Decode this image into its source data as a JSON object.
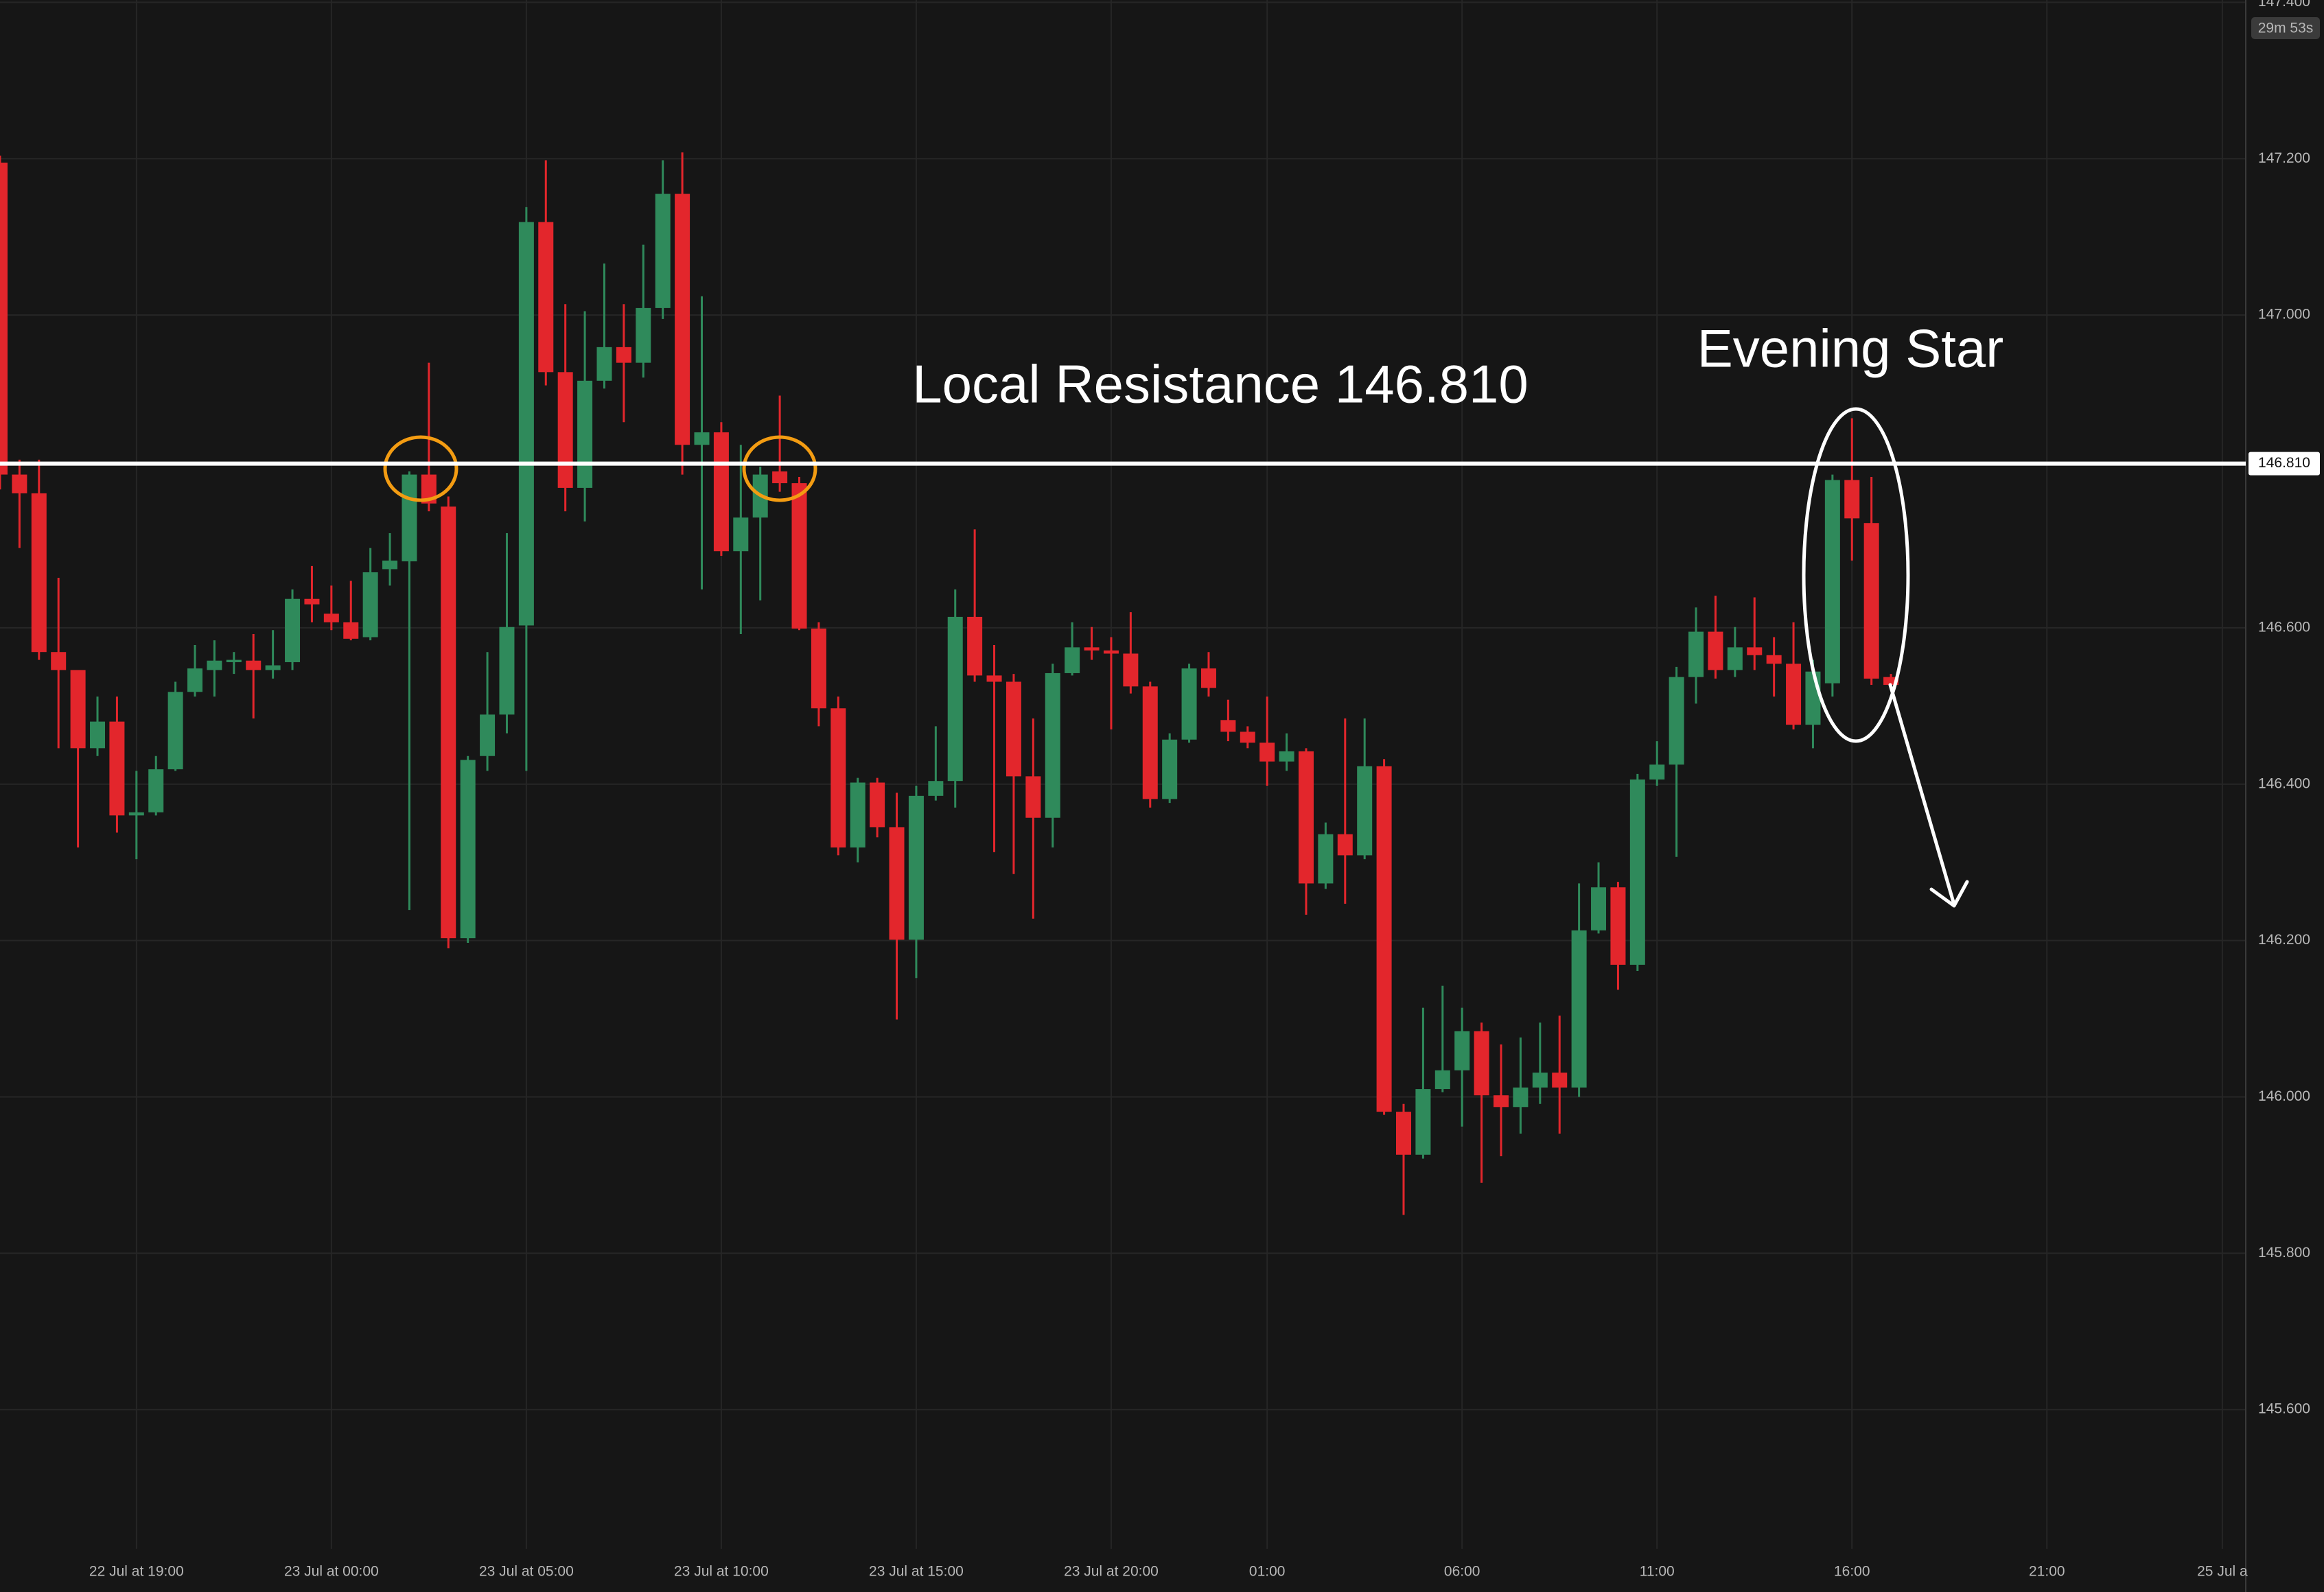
{
  "chart_data": {
    "type": "candlestick",
    "open": [
      147.195,
      146.796,
      146.772,
      146.569,
      146.546,
      146.446,
      146.48,
      146.36,
      146.364,
      146.419,
      146.518,
      146.546,
      146.556,
      146.558,
      146.546,
      146.556,
      146.637,
      146.618,
      146.607,
      146.588,
      146.675,
      146.685,
      146.796,
      146.755,
      146.203,
      146.436,
      146.489,
      146.603,
      147.119,
      146.927,
      146.779,
      146.916,
      146.959,
      146.939,
      147.009,
      147.155,
      146.834,
      146.85,
      146.698,
      146.741,
      146.8,
      146.785,
      146.599,
      146.497,
      146.319,
      146.402,
      146.345,
      146.201,
      146.385,
      146.404,
      146.614,
      146.539,
      146.531,
      146.41,
      146.357,
      146.542,
      146.575,
      146.571,
      146.567,
      146.525,
      146.381,
      146.457,
      146.548,
      146.482,
      146.467,
      146.453,
      146.429,
      146.442,
      146.273,
      146.336,
      146.309,
      146.423,
      145.981,
      145.926,
      146.01,
      146.034,
      146.084,
      146.002,
      145.987,
      146.012,
      146.031,
      146.012,
      146.213,
      146.268,
      146.169,
      146.406,
      146.425,
      146.537,
      146.595,
      146.546,
      146.575,
      146.565,
      146.554,
      146.476,
      146.529,
      146.789,
      146.734,
      146.537
    ],
    "high": [
      147.204,
      146.815,
      146.815,
      146.664,
      146.541,
      146.512,
      146.512,
      146.417,
      146.436,
      146.531,
      146.578,
      146.584,
      146.569,
      146.592,
      146.597,
      146.649,
      146.679,
      146.654,
      146.66,
      146.702,
      146.721,
      146.8,
      146.939,
      146.768,
      146.436,
      146.569,
      146.721,
      147.138,
      147.198,
      147.014,
      147.005,
      147.066,
      147.014,
      147.09,
      147.198,
      147.208,
      147.024,
      146.863,
      146.834,
      146.806,
      146.897,
      146.793,
      146.607,
      146.512,
      146.408,
      146.408,
      146.389,
      146.398,
      146.474,
      146.649,
      146.726,
      146.578,
      146.541,
      146.484,
      146.554,
      146.607,
      146.601,
      146.588,
      146.62,
      146.531,
      146.465,
      146.554,
      146.569,
      146.508,
      146.474,
      146.512,
      146.465,
      146.446,
      146.351,
      146.484,
      146.484,
      146.432,
      145.991,
      146.114,
      146.142,
      146.114,
      146.095,
      146.067,
      146.076,
      146.095,
      146.104,
      146.273,
      146.3,
      146.275,
      146.413,
      146.455,
      146.55,
      146.626,
      146.641,
      146.601,
      146.639,
      146.588,
      146.607,
      146.559,
      146.796,
      146.868,
      146.793,
      146.541
    ],
    "low": [
      146.777,
      146.702,
      146.559,
      146.446,
      146.319,
      146.436,
      146.338,
      146.304,
      146.36,
      146.417,
      146.512,
      146.512,
      146.541,
      146.484,
      146.535,
      146.546,
      146.607,
      146.597,
      146.584,
      146.584,
      146.654,
      146.239,
      146.749,
      146.19,
      146.197,
      146.417,
      146.465,
      146.417,
      146.91,
      146.749,
      146.736,
      146.906,
      146.863,
      146.92,
      146.995,
      146.796,
      146.649,
      146.692,
      146.592,
      146.635,
      146.774,
      146.597,
      146.474,
      146.309,
      146.3,
      146.332,
      146.099,
      146.152,
      146.379,
      146.37,
      146.531,
      146.313,
      146.285,
      146.228,
      146.319,
      146.539,
      146.559,
      146.47,
      146.516,
      146.37,
      146.376,
      146.453,
      146.512,
      146.455,
      146.446,
      146.398,
      146.417,
      146.233,
      146.266,
      146.247,
      146.304,
      145.977,
      145.849,
      145.921,
      146.006,
      145.962,
      145.89,
      145.924,
      145.953,
      145.991,
      145.953,
      146.0,
      146.209,
      146.137,
      146.161,
      146.398,
      146.307,
      146.503,
      146.535,
      146.537,
      146.546,
      146.512,
      146.47,
      146.446,
      146.512,
      146.686,
      146.527,
      146.522
    ],
    "close": [
      146.796,
      146.772,
      146.569,
      146.546,
      146.446,
      146.48,
      146.36,
      146.364,
      146.419,
      146.518,
      146.548,
      146.558,
      146.559,
      146.546,
      146.552,
      146.637,
      146.63,
      146.607,
      146.586,
      146.671,
      146.686,
      146.796,
      146.759,
      146.203,
      146.431,
      146.489,
      146.601,
      147.119,
      146.927,
      146.779,
      146.916,
      146.959,
      146.939,
      147.009,
      147.155,
      146.834,
      146.85,
      146.698,
      146.741,
      146.796,
      146.785,
      146.599,
      146.497,
      146.319,
      146.402,
      146.345,
      146.201,
      146.385,
      146.404,
      146.614,
      146.539,
      146.531,
      146.41,
      146.357,
      146.542,
      146.575,
      146.571,
      146.567,
      146.525,
      146.381,
      146.457,
      146.548,
      146.523,
      146.467,
      146.453,
      146.429,
      146.442,
      146.273,
      146.336,
      146.309,
      146.423,
      145.981,
      145.926,
      146.01,
      146.034,
      146.084,
      146.002,
      145.987,
      146.012,
      146.031,
      146.012,
      146.213,
      146.268,
      146.169,
      146.406,
      146.425,
      146.537,
      146.595,
      146.546,
      146.575,
      146.565,
      146.554,
      146.476,
      146.544,
      146.789,
      146.74,
      146.535,
      146.527
    ],
    "up_color": "#2f8a5b",
    "down_color": "#e3262c",
    "xlim": [
      0,
      115.2
    ],
    "xticks": [
      {
        "value": 7,
        "label": "22 Jul at 19:00"
      },
      {
        "value": 17,
        "label": "23 Jul at 00:00"
      },
      {
        "value": 27,
        "label": "23 Jul at 05:00"
      },
      {
        "value": 37,
        "label": "23 Jul at 10:00"
      },
      {
        "value": 47,
        "label": "23 Jul at 15:00"
      },
      {
        "value": 57,
        "label": "23 Jul at 20:00"
      },
      {
        "value": 65,
        "label": "01:00"
      },
      {
        "value": 75,
        "label": "06:00"
      },
      {
        "value": 85,
        "label": "11:00"
      },
      {
        "value": 95,
        "label": "16:00"
      },
      {
        "value": 105,
        "label": "21:00"
      },
      {
        "value": 114,
        "label": "25 Jul a"
      }
    ],
    "ylim": [
      145.422,
      147.403
    ],
    "yticks": [
      {
        "value": 147.4,
        "label": "147.400"
      },
      {
        "value": 147.2,
        "label": "147.200"
      },
      {
        "value": 147.0,
        "label": "147.000"
      },
      {
        "value": 146.6,
        "label": "146.600"
      },
      {
        "value": 146.4,
        "label": "146.400"
      },
      {
        "value": 146.2,
        "label": "146.200"
      },
      {
        "value": 146.0,
        "label": "146.000"
      },
      {
        "value": 145.8,
        "label": "145.800"
      },
      {
        "value": 145.6,
        "label": "145.600"
      }
    ],
    "grid": true,
    "hlines": [
      {
        "value": 146.81,
        "label": "146.810",
        "color": "#ffffff"
      }
    ],
    "annotations": [
      "Local Resistance 146.810",
      "Evening Star"
    ],
    "countdown": "29m 53s"
  }
}
